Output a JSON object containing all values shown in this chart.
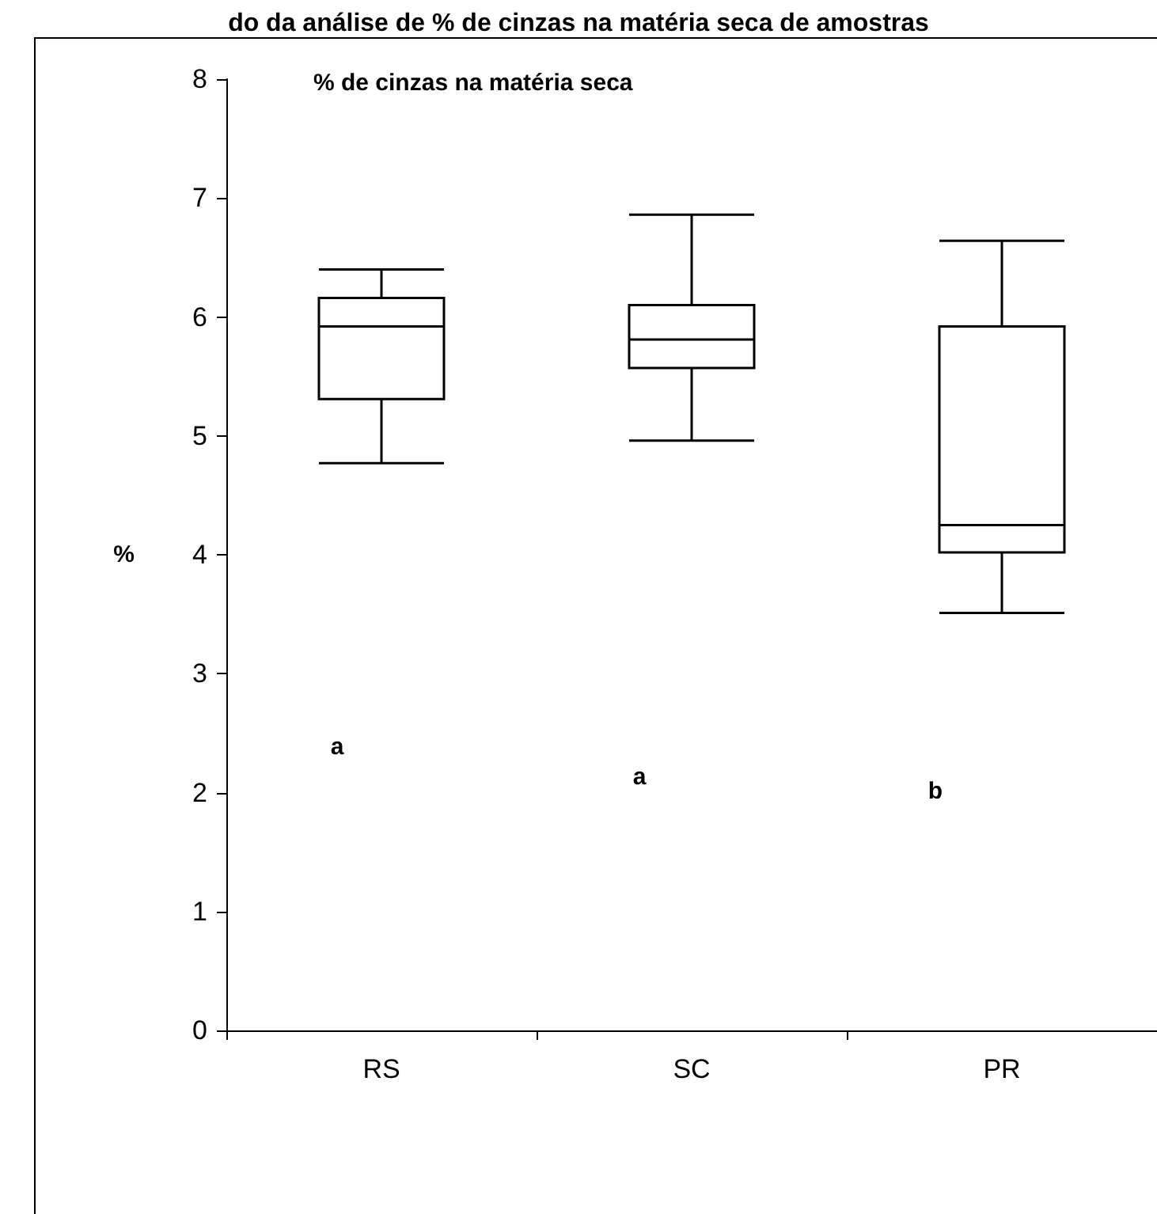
{
  "chart_data": {
    "type": "box",
    "title": "do da análise de % de cinzas na matéria seca de amostras",
    "subtitle": "% de cinzas na matéria seca",
    "ylabel": "%",
    "categories": [
      "RS",
      "SC",
      "PR"
    ],
    "boxes": [
      {
        "low": 4.77,
        "q1": 5.31,
        "median": 5.92,
        "q3": 6.16,
        "high": 6.4
      },
      {
        "low": 4.96,
        "q1": 5.57,
        "median": 5.81,
        "q3": 6.1,
        "high": 6.86
      },
      {
        "low": 3.51,
        "q1": 4.02,
        "median": 4.25,
        "q3": 5.92,
        "high": 6.64
      }
    ],
    "ylim": [
      0,
      8
    ],
    "yticks": [
      0,
      1,
      2,
      3,
      4,
      5,
      6,
      7,
      8
    ],
    "grid": false,
    "annotations": [
      "a",
      "a",
      "b"
    ]
  }
}
